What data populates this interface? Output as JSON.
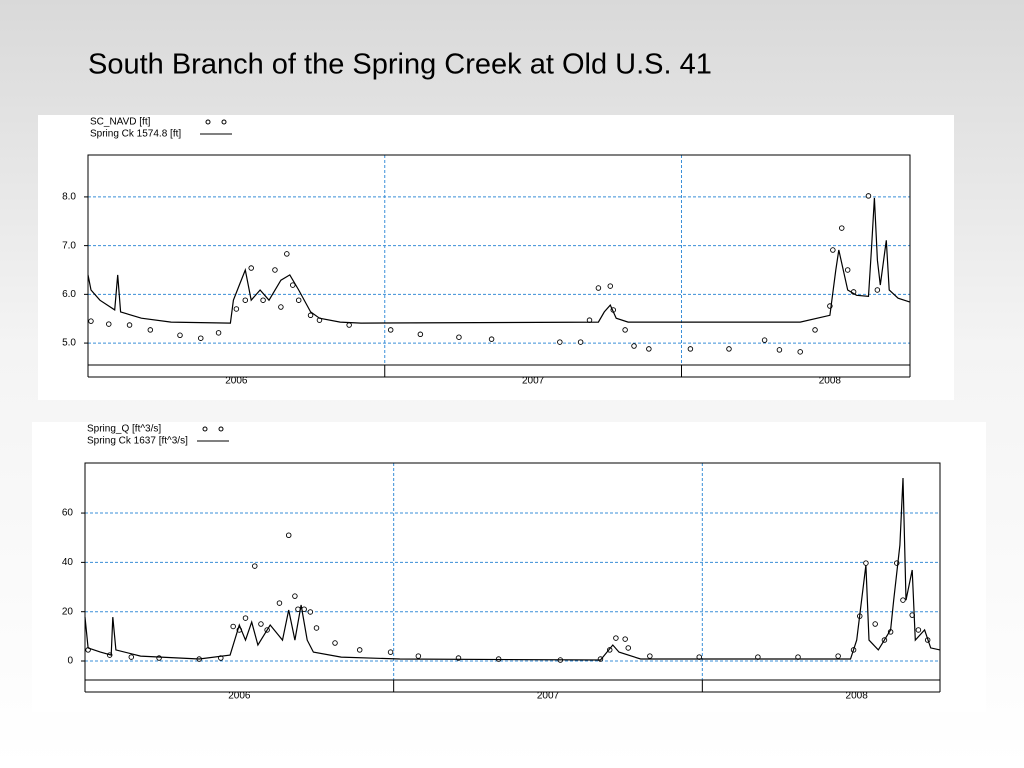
{
  "title": "South Branch of the Spring Creek at Old U.S. 41",
  "chart_data": [
    {
      "type": "line",
      "xlim": [
        2006.0,
        2008.77
      ],
      "xticks": [
        2006,
        2007,
        2008
      ],
      "ylim": [
        4.55,
        8.86
      ],
      "yticks": [
        {
          "value": 5,
          "label": "5.0"
        },
        {
          "value": 6,
          "label": "6.0"
        },
        {
          "value": 7,
          "label": "7.0"
        },
        {
          "value": 8,
          "label": "8.0"
        }
      ],
      "grid": true,
      "series": [
        {
          "name": "SC_NAVD [ft]",
          "mode": "markers",
          "color": "#000000",
          "x": [
            2006.01,
            2006.07,
            2006.14,
            2006.21,
            2006.31,
            2006.38,
            2006.44,
            2006.5,
            2006.53,
            2006.55,
            2006.59,
            2006.63,
            2006.65,
            2006.67,
            2006.69,
            2006.71,
            2006.75,
            2006.78,
            2006.88,
            2007.02,
            2007.12,
            2007.25,
            2007.36,
            2007.59,
            2007.66,
            2007.69,
            2007.72,
            2007.76,
            2007.77,
            2007.81,
            2007.84,
            2007.89,
            2008.03,
            2008.16,
            2008.28,
            2008.33,
            2008.4,
            2008.45,
            2008.5,
            2008.51,
            2008.54,
            2008.56,
            2008.58,
            2008.63,
            2008.66
          ],
          "values": [
            5.45,
            5.39,
            5.37,
            5.27,
            5.16,
            5.1,
            5.21,
            5.7,
            5.88,
            6.54,
            5.88,
            6.5,
            5.74,
            6.83,
            6.19,
            5.88,
            5.57,
            5.47,
            5.37,
            5.27,
            5.18,
            5.12,
            5.08,
            5.02,
            5.02,
            5.47,
            6.13,
            6.17,
            5.68,
            5.27,
            4.94,
            4.88,
            4.88,
            4.88,
            5.06,
            4.86,
            4.82,
            5.27,
            5.76,
            6.91,
            7.36,
            6.5,
            6.05,
            8.02,
            6.09
          ]
        },
        {
          "name": "Spring Ck 1574.8 [ft]",
          "mode": "lines",
          "color": "#000000",
          "x": [
            2006.0,
            2006.01,
            2006.04,
            2006.09,
            2006.1,
            2006.11,
            2006.18,
            2006.28,
            2006.48,
            2006.49,
            2006.51,
            2006.53,
            2006.55,
            2006.58,
            2006.61,
            2006.65,
            2006.68,
            2006.71,
            2006.75,
            2006.78,
            2006.85,
            2006.92,
            2007.72,
            2007.74,
            2007.76,
            2007.78,
            2007.82,
            2008.4,
            2008.5,
            2008.52,
            2008.53,
            2008.56,
            2008.59,
            2008.63,
            2008.64,
            2008.65,
            2008.66,
            2008.67,
            2008.69,
            2008.7,
            2008.73,
            2008.77
          ],
          "values": [
            6.4,
            6.09,
            5.88,
            5.68,
            6.4,
            5.64,
            5.51,
            5.43,
            5.41,
            5.88,
            6.19,
            6.5,
            5.88,
            6.09,
            5.88,
            6.29,
            6.4,
            6.09,
            5.64,
            5.51,
            5.43,
            5.41,
            5.43,
            5.64,
            5.78,
            5.51,
            5.43,
            5.43,
            5.57,
            6.5,
            6.91,
            6.09,
            5.98,
            5.96,
            6.91,
            7.98,
            6.7,
            6.19,
            7.11,
            6.09,
            5.92,
            5.84
          ]
        }
      ]
    },
    {
      "type": "line",
      "xlim": [
        2006.0,
        2008.77
      ],
      "xticks": [
        2006,
        2007,
        2008
      ],
      "ylim": [
        -7.7,
        80.3
      ],
      "yticks": [
        0,
        20,
        40,
        60
      ],
      "grid": true,
      "series": [
        {
          "name": "Spring_Q [ft^3/s]",
          "mode": "markers",
          "color": "#000000",
          "x": [
            2006.01,
            2006.08,
            2006.15,
            2006.24,
            2006.37,
            2006.44,
            2006.48,
            2006.5,
            2006.52,
            2006.55,
            2006.57,
            2006.59,
            2006.63,
            2006.66,
            2006.68,
            2006.69,
            2006.71,
            2006.73,
            2006.75,
            2006.81,
            2006.89,
            2006.99,
            2007.08,
            2007.21,
            2007.34,
            2007.54,
            2007.67,
            2007.7,
            2007.72,
            2007.75,
            2007.76,
            2007.83,
            2007.99,
            2008.18,
            2008.31,
            2008.44,
            2008.49,
            2008.51,
            2008.53,
            2008.56,
            2008.59,
            2008.61,
            2008.63,
            2008.65,
            2008.68,
            2008.7,
            2008.73
          ],
          "values": [
            4.5,
            2.4,
            1.6,
            1.2,
            0.8,
            1.2,
            14,
            12.6,
            17.4,
            38.5,
            15,
            12.6,
            23.5,
            51,
            26.3,
            21,
            21,
            19.9,
            13.4,
            7.3,
            4.5,
            3.6,
            2.0,
            1.2,
            0.8,
            0.4,
            0.8,
            4.5,
            9.3,
            8.9,
            5.3,
            2.0,
            1.6,
            1.6,
            1.6,
            2.0,
            4.5,
            18.2,
            39.7,
            15,
            8.5,
            11.8,
            39.7,
            24.7,
            18.6,
            12.6,
            8.5
          ]
        },
        {
          "name": "Spring Ck 1637 [ft^3/s]",
          "mode": "lines",
          "color": "#000000",
          "x": [
            2006.0,
            2006.01,
            2006.05,
            2006.085,
            2006.09,
            2006.1,
            2006.18,
            2006.37,
            2006.47,
            2006.5,
            2006.52,
            2006.54,
            2006.56,
            2006.6,
            2006.64,
            2006.66,
            2006.68,
            2006.7,
            2006.72,
            2006.74,
            2006.83,
            2007.02,
            2007.67,
            2007.71,
            2007.73,
            2007.8,
            2008.48,
            2008.5,
            2008.53,
            2008.54,
            2008.57,
            2008.61,
            2008.62,
            2008.64,
            2008.65,
            2008.66,
            2008.68,
            2008.69,
            2008.72,
            2008.74,
            2008.77
          ],
          "values": [
            17.8,
            5.3,
            3.6,
            2.4,
            17.8,
            4.5,
            2.0,
            0.8,
            2.4,
            14.6,
            8.5,
            15.8,
            6.5,
            14.6,
            8.5,
            20.7,
            8.5,
            22.7,
            8.5,
            3.6,
            1.6,
            0.8,
            0.4,
            6.5,
            3.6,
            0.8,
            0.8,
            8.5,
            38.9,
            8.5,
            4.5,
            12.6,
            24.7,
            47,
            74.2,
            24.7,
            36.9,
            8.5,
            12.6,
            5.3,
            4.5
          ]
        }
      ]
    }
  ]
}
